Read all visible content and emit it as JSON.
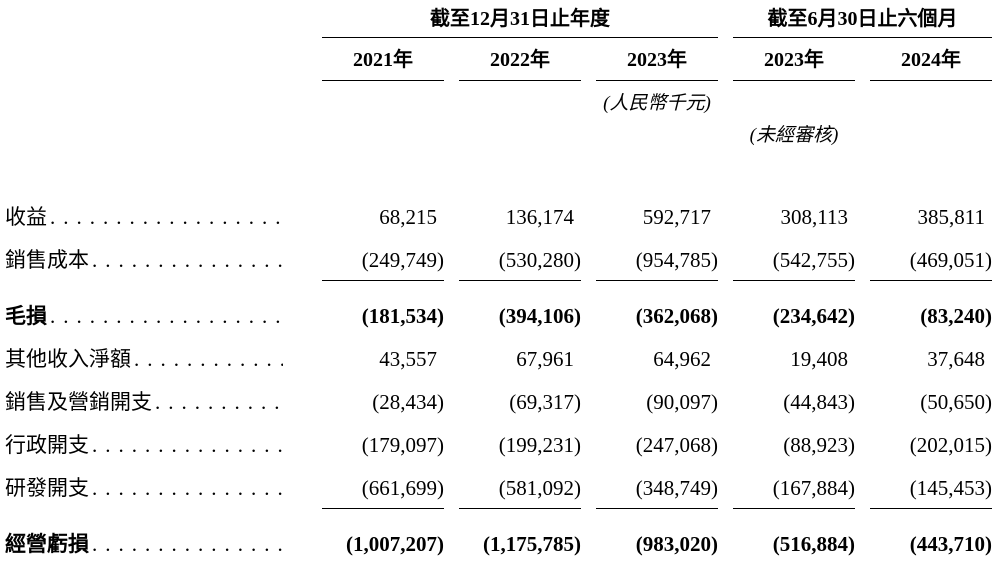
{
  "table": {
    "col_groups": [
      {
        "label": "截至12月31日止年度"
      },
      {
        "label": "截至6月30日止六個月"
      }
    ],
    "columns": [
      "2021年",
      "2022年",
      "2023年",
      "2023年",
      "2024年"
    ],
    "unit_note": "(人民幣千元)",
    "unaudited_note": "(未經審核)",
    "dot_leader": "........................",
    "rows": [
      {
        "label": "收益",
        "values": [
          "68,215",
          "136,174",
          "592,717",
          "308,113",
          "385,811"
        ]
      },
      {
        "label": "銷售成本",
        "values": [
          "(249,749)",
          "(530,280)",
          "(954,785)",
          "(542,755)",
          "(469,051)"
        ]
      },
      {
        "label": "毛損",
        "values": [
          "(181,534)",
          "(394,106)",
          "(362,068)",
          "(234,642)",
          "(83,240)"
        ]
      },
      {
        "label": "其他收入淨額",
        "values": [
          "43,557",
          "67,961",
          "64,962",
          "19,408",
          "37,648"
        ]
      },
      {
        "label": "銷售及營銷開支",
        "values": [
          "(28,434)",
          "(69,317)",
          "(90,097)",
          "(44,843)",
          "(50,650)"
        ]
      },
      {
        "label": "行政開支",
        "values": [
          "(179,097)",
          "(199,231)",
          "(247,068)",
          "(88,923)",
          "(202,015)"
        ]
      },
      {
        "label": "研發開支",
        "values": [
          "(661,699)",
          "(581,092)",
          "(348,749)",
          "(167,884)",
          "(145,453)"
        ]
      },
      {
        "label": "經營虧損",
        "values": [
          "(1,007,207)",
          "(1,175,785)",
          "(983,020)",
          "(516,884)",
          "(443,710)"
        ]
      }
    ]
  }
}
